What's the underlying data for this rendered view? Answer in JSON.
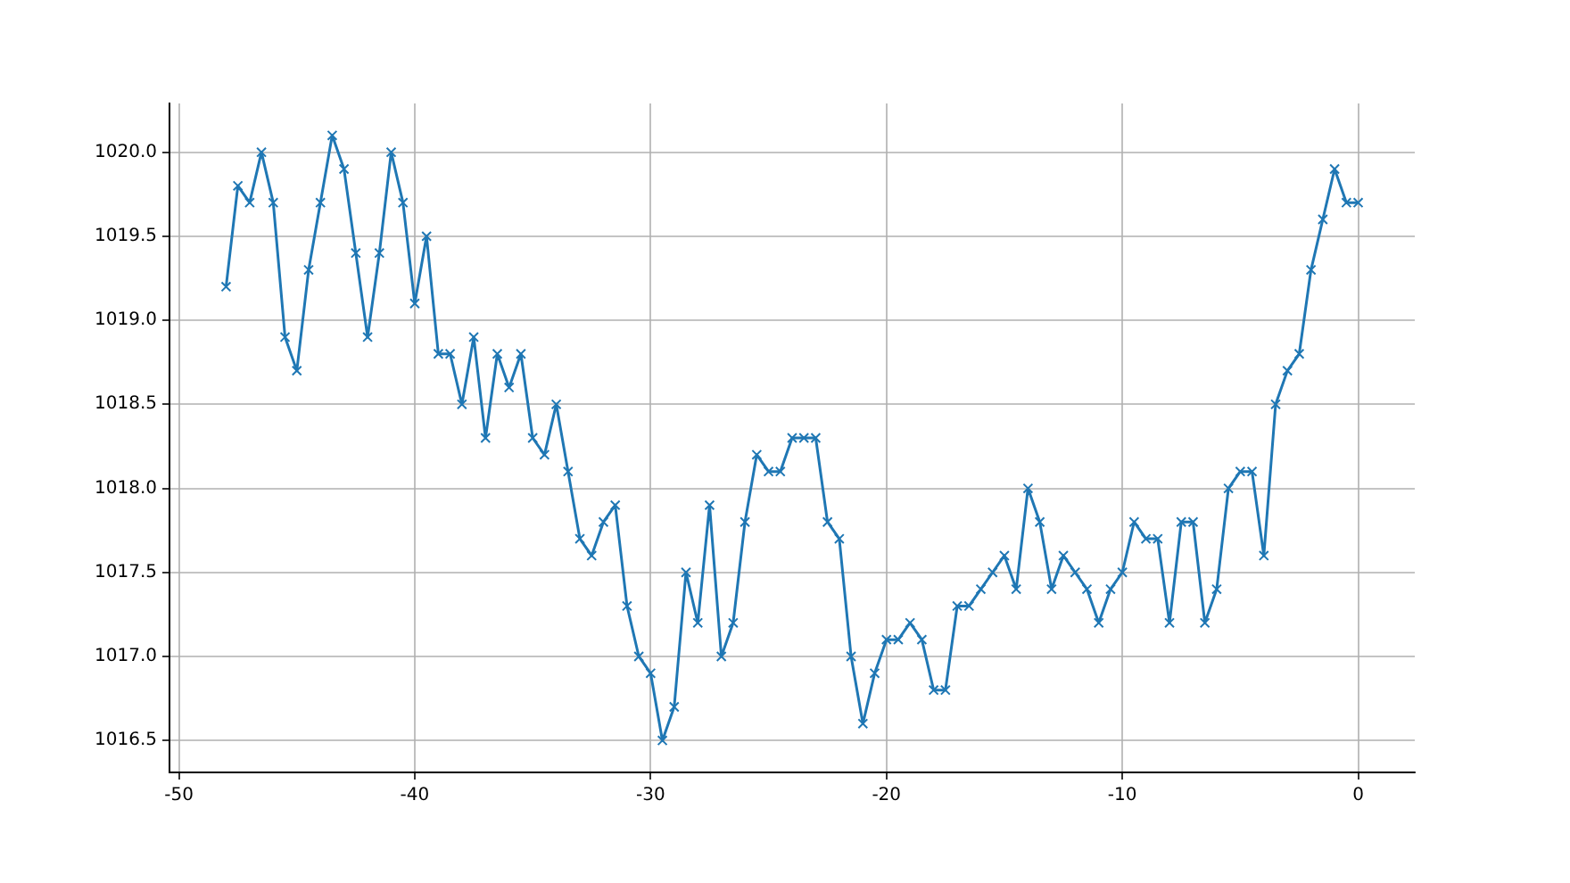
{
  "chart_data": {
    "type": "line",
    "x": [
      -48,
      -47.5,
      -47,
      -46.5,
      -46,
      -45.5,
      -45,
      -44.5,
      -44,
      -43.5,
      -43,
      -42.5,
      -42,
      -41.5,
      -41,
      -40.5,
      -40,
      -39.5,
      -39,
      -38.5,
      -38,
      -37.5,
      -37,
      -36.5,
      -36,
      -35.5,
      -35,
      -34.5,
      -34,
      -33.5,
      -33,
      -32.5,
      -32,
      -31.5,
      -31,
      -30.5,
      -30,
      -29.5,
      -29,
      -28.5,
      -28,
      -27.5,
      -27,
      -26.5,
      -26,
      -25.5,
      -25,
      -24.5,
      -24,
      -23.5,
      -23,
      -22.5,
      -22,
      -21.5,
      -21,
      -20.5,
      -20,
      -19.5,
      -19,
      -18.5,
      -18,
      -17.5,
      -17,
      -16.5,
      -16,
      -15.5,
      -15,
      -14.5,
      -14,
      -13.5,
      -13,
      -12.5,
      -12,
      -11.5,
      -11,
      -10.5,
      -10,
      -9.5,
      -9,
      -8.5,
      -8,
      -7.5,
      -7,
      -6.5,
      -6,
      -5.5,
      -5,
      -4.5,
      -4,
      -3.5,
      -3,
      -2.5,
      -2,
      -1.5,
      -1,
      -0.5,
      0
    ],
    "series": [
      {
        "color": "#1f77b4",
        "values": [
          1019.2,
          1019.8,
          1019.7,
          1020.0,
          1019.7,
          1018.9,
          1018.7,
          1019.3,
          1019.7,
          1020.1,
          1019.9,
          1019.4,
          1018.9,
          1019.4,
          1020.0,
          1019.7,
          1019.1,
          1019.5,
          1018.8,
          1018.8,
          1018.5,
          1018.9,
          1018.3,
          1018.8,
          1018.6,
          1018.8,
          1018.3,
          1018.2,
          1018.5,
          1018.1,
          1017.7,
          1017.6,
          1017.8,
          1017.9,
          1017.3,
          1017.0,
          1016.9,
          1016.5,
          1016.7,
          1017.5,
          1017.2,
          1017.9,
          1017.0,
          1017.2,
          1017.8,
          1018.2,
          1018.1,
          1018.1,
          1018.3,
          1018.3,
          1018.3,
          1017.8,
          1017.7,
          1017.0,
          1016.6,
          1016.9,
          1017.1,
          1017.1,
          1017.2,
          1017.1,
          1016.8,
          1016.8,
          1017.3,
          1017.3,
          1017.4,
          1017.5,
          1017.6,
          1017.4,
          1018.0,
          1017.8,
          1017.4,
          1017.6,
          1017.5,
          1017.4,
          1017.2,
          1017.4,
          1017.5,
          1017.8,
          1017.7,
          1017.7,
          1017.2,
          1017.8,
          1017.8,
          1017.2,
          1017.4,
          1018.0,
          1018.1,
          1018.1,
          1017.6,
          1018.5,
          1018.7,
          1018.8,
          1019.3,
          1019.6,
          1019.9,
          1019.7,
          1019.7
        ]
      }
    ],
    "xlim": [
      -50.4,
      2.4
    ],
    "xticks": [
      -50,
      -40,
      -30,
      -20,
      -10,
      0
    ],
    "ylim": [
      1016.31,
      1020.29
    ],
    "yticks": [
      {
        "value": 1016.5,
        "label": "1016.5"
      },
      {
        "value": 1017,
        "label": "1017.0"
      },
      {
        "value": 1017.5,
        "label": "1017.5"
      },
      {
        "value": 1018,
        "label": "1018.0"
      },
      {
        "value": 1018.5,
        "label": "1018.5"
      },
      {
        "value": 1019,
        "label": "1019.0"
      },
      {
        "value": 1019.5,
        "label": "1019.5"
      },
      {
        "value": 1020,
        "label": "1020.0"
      }
    ],
    "grid": true,
    "marker": "cross",
    "line_style": "solid"
  }
}
